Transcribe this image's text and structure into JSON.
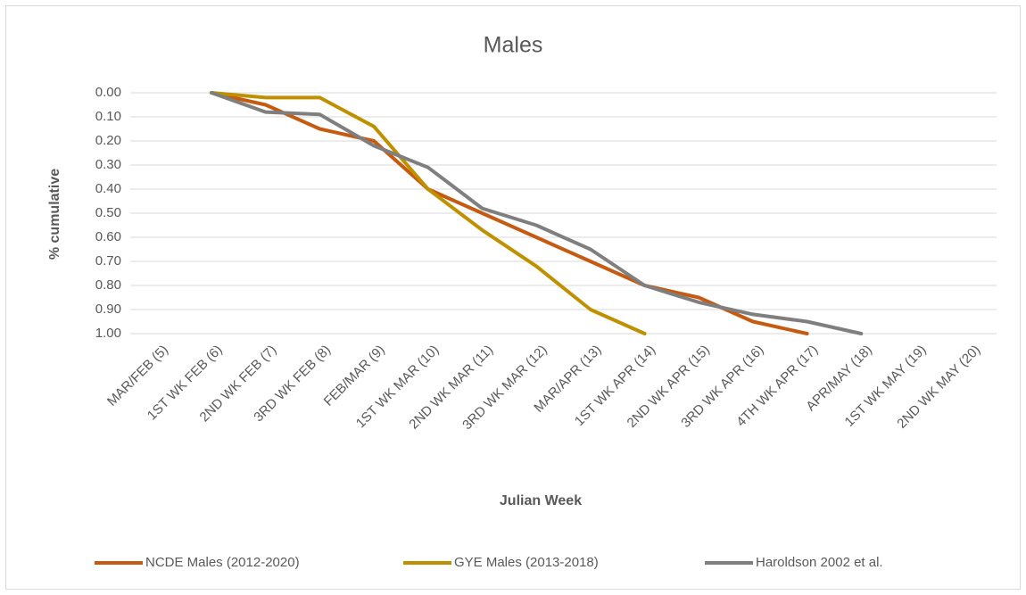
{
  "chart_data": {
    "type": "line",
    "title": "Males",
    "x_label": "Julian Week",
    "y_label": "% cumulative",
    "categories": [
      "MAR/FEB (5)",
      "1ST WK FEB (6)",
      "2ND WK FEB (7)",
      "3RD WK FEB (8)",
      "FEB/MAR (9)",
      "1ST WK MAR (10)",
      "2ND WK MAR (11)",
      "3RD WK MAR (12)",
      "MAR/APR (13)",
      "1ST WK APR (14)",
      "2ND WK APR (15)",
      "3RD WK APR (16)",
      "4TH WK APR (17)",
      "APR/MAY (18)",
      "1ST WK MAY (19)",
      "2ND WK MAY (20)"
    ],
    "series": [
      {
        "name": "NCDE Males (2012-2020)",
        "color": "#c55a11",
        "values": [
          null,
          0,
          0.05,
          0.15,
          0.2,
          0.4,
          0.5,
          0.6,
          0.7,
          0.8,
          0.85,
          0.95,
          1.0,
          null,
          null,
          null
        ]
      },
      {
        "name": "GYE Males (2013-2018)",
        "color": "#bf9000",
        "values": [
          null,
          0,
          0.02,
          0.02,
          0.14,
          0.4,
          0.57,
          0.72,
          0.9,
          1.0,
          null,
          null,
          null,
          null,
          null,
          null
        ]
      },
      {
        "name": "Haroldson 2002 et al.",
        "color": "#7f7f7f",
        "values": [
          null,
          0,
          0.08,
          0.09,
          0.22,
          0.31,
          0.48,
          0.55,
          0.65,
          0.8,
          0.87,
          0.92,
          0.95,
          1.0,
          null,
          null
        ]
      }
    ],
    "ylim": [
      0,
      1
    ],
    "y_inverted": true,
    "yticks": [
      {
        "value": 0,
        "label": "0.00"
      },
      {
        "value": 0.1,
        "label": "0.10"
      },
      {
        "value": 0.2,
        "label": "0.20"
      },
      {
        "value": 0.3,
        "label": "0.30"
      },
      {
        "value": 0.4,
        "label": "0.40"
      },
      {
        "value": 0.5,
        "label": "0.50"
      },
      {
        "value": 0.6,
        "label": "0.60"
      },
      {
        "value": 0.7,
        "label": "0.70"
      },
      {
        "value": 0.8,
        "label": "0.80"
      },
      {
        "value": 0.9,
        "label": "0.90"
      },
      {
        "value": 1.0,
        "label": "1.00"
      }
    ],
    "grid": true,
    "legend": "bottom"
  }
}
